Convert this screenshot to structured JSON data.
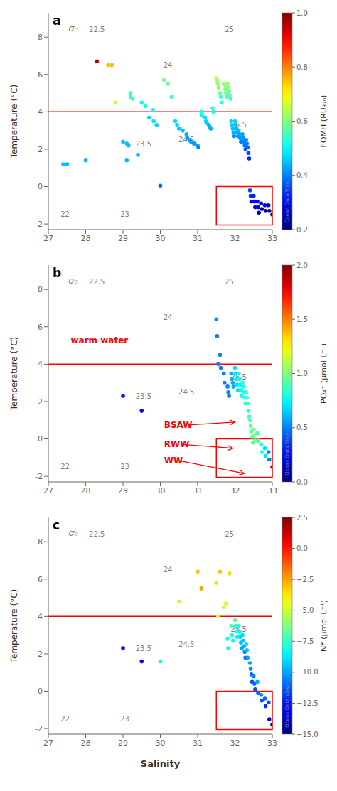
{
  "chart_data": [
    {
      "type": "scatter",
      "panel_label": "a",
      "contour_title": "σ₀",
      "watermark": "Ocean Data View",
      "xlabel": null,
      "ylabel": "Temperature (°C)",
      "xlim": [
        27,
        33
      ],
      "ylim": [
        -2.3,
        9.3
      ],
      "xticks": [
        27,
        28,
        29,
        30,
        31,
        32,
        33
      ],
      "yticks": [
        -2,
        0,
        2,
        4,
        6,
        8
      ],
      "grid": false,
      "hline": {
        "y": 4.0,
        "color": "red"
      },
      "box": {
        "x": [
          31.5,
          33.0
        ],
        "y": [
          -2.05,
          0.0
        ],
        "color": "red"
      },
      "contour_labels": [
        {
          "text": "22",
          "x": 27.45,
          "y": -1.5
        },
        {
          "text": "22.5",
          "x": 28.3,
          "y": 8.4
        },
        {
          "text": "23",
          "x": 29.05,
          "y": -1.5
        },
        {
          "text": "23.5",
          "x": 29.55,
          "y": 2.3
        },
        {
          "text": "24",
          "x": 30.2,
          "y": 6.5
        },
        {
          "text": "24.5",
          "x": 30.7,
          "y": 2.5
        },
        {
          "text": "25",
          "x": 31.85,
          "y": 8.4
        },
        {
          "text": "25.5",
          "x": 32.1,
          "y": 3.3
        }
      ],
      "annotations": [],
      "colorbar": {
        "label": "FOMH (RU₃₇₀)",
        "lim": [
          0.2,
          1.0
        ],
        "ticks": [
          0.2,
          0.4,
          0.6,
          0.8,
          {
            "value": 1.0,
            "label": "1.0"
          }
        ]
      },
      "x": [
        27.4,
        27.5,
        28.0,
        28.3,
        28.6,
        28.7,
        28.8,
        29.0,
        29.1,
        29.15,
        29.1,
        29.2,
        29.2,
        29.25,
        29.4,
        29.5,
        29.6,
        29.7,
        29.8,
        29.82,
        29.9,
        30.0,
        30.1,
        30.2,
        30.3,
        30.4,
        30.45,
        30.5,
        30.6,
        30.7,
        30.72,
        30.8,
        30.82,
        30.9,
        30.92,
        31.0,
        31.02,
        31.1,
        31.12,
        31.2,
        31.22,
        31.25,
        31.3,
        31.32,
        31.35,
        31.4,
        31.42,
        31.5,
        31.52,
        31.54,
        31.56,
        31.6,
        31.62,
        31.64,
        31.7,
        31.72,
        31.74,
        31.76,
        31.78,
        31.8,
        31.82,
        31.84,
        31.86,
        31.88,
        31.9,
        31.92,
        31.94,
        31.96,
        31.98,
        32.0,
        32.02,
        32.04,
        32.06,
        32.08,
        32.1,
        32.12,
        32.14,
        32.16,
        32.2,
        32.22,
        32.24,
        32.26,
        32.28,
        32.3,
        32.32,
        32.34,
        32.36,
        32.38,
        32.4,
        32.42,
        32.44,
        32.5,
        32.52,
        32.54,
        32.6,
        32.62,
        32.64,
        32.7,
        32.72,
        32.8,
        32.82,
        32.9,
        32.92,
        33.0
      ],
      "values": [
        1.2,
        1.2,
        1.4,
        6.7,
        6.5,
        6.5,
        4.5,
        2.4,
        2.3,
        2.2,
        1.4,
        5.0,
        4.8,
        4.7,
        1.7,
        4.5,
        4.3,
        3.7,
        4.1,
        3.5,
        3.3,
        0.05,
        5.7,
        5.5,
        4.8,
        3.5,
        3.3,
        3.1,
        3.0,
        2.8,
        2.6,
        2.5,
        2.4,
        2.3,
        2.3,
        2.2,
        2.1,
        4.0,
        3.8,
        3.7,
        3.5,
        3.4,
        3.3,
        3.2,
        3.1,
        4.2,
        4.0,
        5.8,
        5.7,
        5.5,
        5.3,
        5.0,
        4.8,
        4.5,
        5.5,
        5.4,
        5.2,
        5.0,
        4.8,
        5.5,
        5.3,
        5.1,
        4.9,
        4.7,
        3.5,
        3.3,
        3.1,
        2.9,
        2.7,
        3.5,
        3.3,
        3.1,
        2.9,
        2.7,
        3.0,
        2.8,
        2.6,
        2.4,
        2.8,
        2.6,
        2.4,
        2.2,
        2.0,
        2.5,
        2.3,
        2.1,
        1.8,
        1.5,
        -0.2,
        -0.5,
        -0.8,
        -0.5,
        -0.8,
        -1.1,
        -0.8,
        -1.1,
        -1.4,
        -0.9,
        -1.2,
        -1.0,
        -1.3,
        -1.0,
        -1.3,
        -1.5
      ],
      "color_values": [
        0.45,
        0.45,
        0.45,
        0.95,
        0.75,
        0.75,
        0.65,
        0.45,
        0.45,
        0.45,
        0.45,
        0.55,
        0.55,
        0.55,
        0.45,
        0.52,
        0.5,
        0.47,
        0.5,
        0.48,
        0.47,
        0.38,
        0.6,
        0.58,
        0.55,
        0.48,
        0.47,
        0.46,
        0.45,
        0.44,
        0.43,
        0.43,
        0.43,
        0.42,
        0.42,
        0.42,
        0.41,
        0.52,
        0.5,
        0.48,
        0.47,
        0.46,
        0.45,
        0.44,
        0.44,
        0.53,
        0.52,
        0.65,
        0.63,
        0.62,
        0.6,
        0.58,
        0.55,
        0.53,
        0.63,
        0.61,
        0.6,
        0.58,
        0.56,
        0.62,
        0.6,
        0.58,
        0.57,
        0.55,
        0.47,
        0.46,
        0.45,
        0.44,
        0.42,
        0.47,
        0.45,
        0.44,
        0.43,
        0.42,
        0.45,
        0.43,
        0.42,
        0.4,
        0.43,
        0.42,
        0.4,
        0.39,
        0.37,
        0.42,
        0.4,
        0.38,
        0.36,
        0.33,
        0.35,
        0.33,
        0.3,
        0.32,
        0.3,
        0.27,
        0.3,
        0.27,
        0.25,
        0.28,
        0.25,
        0.27,
        0.24,
        0.26,
        0.23,
        0.22
      ]
    },
    {
      "type": "scatter",
      "panel_label": "b",
      "contour_title": "σ₀",
      "watermark": "Ocean Data View",
      "xlabel": null,
      "ylabel": "Temperature (°C)",
      "xlim": [
        27,
        33
      ],
      "ylim": [
        -2.3,
        9.3
      ],
      "xticks": [
        27,
        28,
        29,
        30,
        31,
        32,
        33
      ],
      "yticks": [
        -2,
        0,
        2,
        4,
        6,
        8
      ],
      "grid": false,
      "hline": {
        "y": 4.0,
        "color": "red"
      },
      "box": {
        "x": [
          31.5,
          33.0
        ],
        "y": [
          -2.05,
          0.0
        ],
        "color": "red"
      },
      "contour_labels": [
        {
          "text": "22",
          "x": 27.45,
          "y": -1.5
        },
        {
          "text": "22.5",
          "x": 28.3,
          "y": 8.4
        },
        {
          "text": "23",
          "x": 29.05,
          "y": -1.5
        },
        {
          "text": "23.5",
          "x": 29.55,
          "y": 2.3
        },
        {
          "text": "24",
          "x": 30.2,
          "y": 6.5
        },
        {
          "text": "24.5",
          "x": 30.7,
          "y": 2.5
        },
        {
          "text": "25",
          "x": 31.85,
          "y": 8.4
        },
        {
          "text": "25.5",
          "x": 32.1,
          "y": 3.3
        }
      ],
      "annotations": [
        {
          "text": "warm water",
          "x": 27.6,
          "y": 5.1,
          "color": "red"
        },
        {
          "text": "BSAW",
          "x": 30.1,
          "y": 0.75,
          "arrow_x": 32.0,
          "arrow_y": 0.9,
          "color": "red"
        },
        {
          "text": "RWW",
          "x": 30.1,
          "y": -0.3,
          "arrow_x": 31.95,
          "arrow_y": -0.5,
          "color": "red"
        },
        {
          "text": "WW",
          "x": 30.1,
          "y": -1.15,
          "arrow_x": 32.25,
          "arrow_y": -1.85,
          "color": "red"
        }
      ],
      "colorbar": {
        "label": "PO₄⁻ (μmol L⁻¹)",
        "lim": [
          0.0,
          2.0
        ],
        "ticks": [
          {
            "value": 0.0,
            "label": "0.0"
          },
          0.5,
          {
            "value": 1.0,
            "label": "1.0"
          },
          1.5,
          {
            "value": 2.0,
            "label": "2.0"
          }
        ]
      },
      "x": [
        29.0,
        29.5,
        31.5,
        31.52,
        31.55,
        31.6,
        31.62,
        31.7,
        31.72,
        31.8,
        31.82,
        31.84,
        31.9,
        31.92,
        31.94,
        31.96,
        32.0,
        32.02,
        32.04,
        32.06,
        32.08,
        32.1,
        32.12,
        32.14,
        32.16,
        32.18,
        32.2,
        32.22,
        32.24,
        32.26,
        32.28,
        32.3,
        32.32,
        32.34,
        32.36,
        32.38,
        32.4,
        32.42,
        32.44,
        32.46,
        32.48,
        32.5,
        32.52,
        32.54,
        32.6,
        32.62,
        32.7,
        32.72,
        32.8,
        32.82,
        32.9,
        32.92,
        33.0
      ],
      "values": [
        2.3,
        1.5,
        6.4,
        5.5,
        4.0,
        4.5,
        3.8,
        3.5,
        3.0,
        2.8,
        2.5,
        2.3,
        3.5,
        3.2,
        3.0,
        2.8,
        3.8,
        3.5,
        3.2,
        2.9,
        2.6,
        3.5,
        3.2,
        2.9,
        2.6,
        2.3,
        3.0,
        2.8,
        2.5,
        2.2,
        1.9,
        2.5,
        2.2,
        1.9,
        1.5,
        1.2,
        1.0,
        0.7,
        0.4,
        0.1,
        -0.2,
        0.5,
        0.2,
        -0.1,
        0.3,
        -0.1,
        -0.3,
        -0.7,
        -0.5,
        -0.9,
        -0.7,
        -1.1,
        -1.5
      ],
      "color_values": [
        0.3,
        0.25,
        0.55,
        0.5,
        0.5,
        0.5,
        0.5,
        0.5,
        0.5,
        0.5,
        0.5,
        0.5,
        0.6,
        0.6,
        0.6,
        0.6,
        0.7,
        0.7,
        0.7,
        0.7,
        0.7,
        0.75,
        0.75,
        0.75,
        0.75,
        0.75,
        0.8,
        0.8,
        0.8,
        0.8,
        0.8,
        0.85,
        0.85,
        0.85,
        0.85,
        0.85,
        0.9,
        0.9,
        0.9,
        0.9,
        0.9,
        1.0,
        1.0,
        1.0,
        0.9,
        0.9,
        0.8,
        0.8,
        0.7,
        0.7,
        0.5,
        0.5,
        1.9
      ]
    },
    {
      "type": "scatter",
      "panel_label": "c",
      "contour_title": "σ₀",
      "watermark": "Ocean Data View",
      "xlabel": "Salinity",
      "ylabel": "Temperature (°C)",
      "xlim": [
        27,
        33
      ],
      "ylim": [
        -2.3,
        9.3
      ],
      "xticks": [
        27,
        28,
        29,
        30,
        31,
        32,
        33
      ],
      "yticks": [
        -2,
        0,
        2,
        4,
        6,
        8
      ],
      "grid": false,
      "hline": {
        "y": 4.0,
        "color": "red"
      },
      "box": {
        "x": [
          31.5,
          33.0
        ],
        "y": [
          -2.05,
          0.0
        ],
        "color": "red"
      },
      "contour_labels": [
        {
          "text": "22",
          "x": 27.45,
          "y": -1.5
        },
        {
          "text": "22.5",
          "x": 28.3,
          "y": 8.4
        },
        {
          "text": "23",
          "x": 29.05,
          "y": -1.5
        },
        {
          "text": "23.5",
          "x": 29.55,
          "y": 2.3
        },
        {
          "text": "24",
          "x": 30.2,
          "y": 6.5
        },
        {
          "text": "24.5",
          "x": 30.7,
          "y": 2.5
        },
        {
          "text": "25",
          "x": 31.85,
          "y": 8.4
        },
        {
          "text": "25.5",
          "x": 32.1,
          "y": 3.3
        }
      ],
      "annotations": [],
      "colorbar": {
        "label": "N* (μmol L⁻¹)",
        "lim": [
          -15,
          2.5
        ],
        "ticks": [
          {
            "value": -15,
            "label": "−15.0"
          },
          {
            "value": -12.5,
            "label": "−12.5"
          },
          {
            "value": -10,
            "label": "−10.0"
          },
          {
            "value": -7.5,
            "label": "−7.5"
          },
          {
            "value": -5,
            "label": "−5.0"
          },
          {
            "value": -2.5,
            "label": "−2.5"
          },
          {
            "value": 0,
            "label": "0.0"
          },
          2.5
        ]
      },
      "x": [
        29.0,
        29.5,
        30.0,
        30.5,
        31.0,
        31.1,
        31.5,
        31.55,
        31.6,
        31.7,
        31.75,
        31.8,
        31.82,
        31.85,
        31.9,
        31.92,
        31.95,
        32.0,
        32.02,
        32.04,
        32.06,
        32.1,
        32.12,
        32.14,
        32.16,
        32.18,
        32.2,
        32.22,
        32.24,
        32.26,
        32.28,
        32.3,
        32.32,
        32.34,
        32.4,
        32.42,
        32.44,
        32.46,
        32.5,
        32.52,
        32.54,
        32.6,
        32.62,
        32.7,
        32.72,
        32.8,
        32.82,
        32.9,
        32.92,
        33.0
      ],
      "values": [
        2.3,
        1.6,
        1.6,
        4.8,
        6.4,
        5.5,
        5.8,
        4.0,
        6.4,
        4.5,
        4.7,
        2.8,
        2.3,
        6.3,
        3.5,
        3.0,
        2.7,
        3.8,
        3.5,
        3.2,
        2.9,
        3.5,
        3.2,
        2.9,
        2.6,
        2.3,
        3.0,
        2.7,
        2.4,
        2.1,
        1.8,
        2.5,
        2.2,
        1.8,
        1.5,
        1.2,
        0.9,
        0.5,
        0.8,
        0.4,
        0.1,
        0.5,
        -0.1,
        -0.2,
        -0.5,
        -0.4,
        -0.8,
        -0.6,
        -1.5,
        -1.8
      ],
      "color_values": [
        -12.5,
        -12.8,
        -8.5,
        -5.2,
        -3.0,
        -2.5,
        -3.5,
        -5.0,
        -3.0,
        -5.0,
        -5.0,
        -8.0,
        -8.5,
        -3.5,
        -7.5,
        -8.0,
        -8.5,
        -7.0,
        -7.5,
        -8.0,
        -8.5,
        -8.0,
        -8.5,
        -9.0,
        -9.5,
        -10.0,
        -9.0,
        -9.5,
        -10.0,
        -10.5,
        -11.0,
        -9.0,
        -9.5,
        -10.0,
        -10.0,
        -10.5,
        -11.0,
        -11.5,
        -10.5,
        -11.0,
        -11.5,
        -10.0,
        -11.0,
        -10.5,
        -11.5,
        -11.0,
        -12.0,
        -11.5,
        -13.5,
        -14.5
      ]
    }
  ]
}
